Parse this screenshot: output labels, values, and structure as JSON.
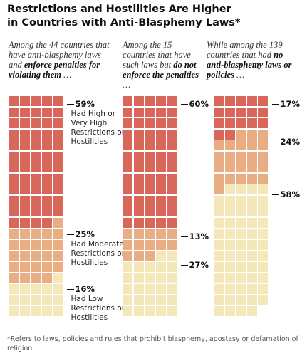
{
  "chart_data": {
    "type": "waffle",
    "title": [
      "Restrictions and Hostilities Are Higher",
      "in Countries with Anti-Blasphemy Laws*"
    ],
    "categories": [
      "Had High or Very High Restrictions or Hostilities",
      "Had Moderate Restrictions or Hostilities",
      "Had Low Restrictions or Hostilities"
    ],
    "colors": [
      "#d9665b",
      "#e8ad82",
      "#f4e7ba"
    ],
    "panels": [
      {
        "intro": [
          {
            "text": "Among the 44 countries that have anti-blasphemy laws and "
          },
          {
            "text": "enforce penalties for violating them",
            "bold": true
          },
          {
            "text": " …"
          }
        ],
        "values": [
          59,
          25,
          16
        ],
        "value_labels": [
          "59%",
          "25%",
          "16%"
        ],
        "show_categories": true
      },
      {
        "intro": [
          {
            "text": "Among the 15 countries that have such laws but "
          },
          {
            "text": "do not enforce the penalties",
            "bold": true
          },
          {
            "text": " …"
          }
        ],
        "values": [
          60,
          13,
          27
        ],
        "value_labels": [
          "60%",
          "13%",
          "27%"
        ]
      },
      {
        "intro": [
          {
            "text": "While among the 139 countries that had "
          },
          {
            "text": "no anti-blasphemy laws or policies",
            "bold": true
          },
          {
            "text": " …"
          }
        ],
        "values": [
          17,
          24,
          58
        ],
        "value_labels": [
          "17%",
          "24%",
          "58%"
        ]
      }
    ],
    "footnote": "*Refers to laws, policies and rules that prohibit blasphemy, apostasy or defamation of religion."
  }
}
